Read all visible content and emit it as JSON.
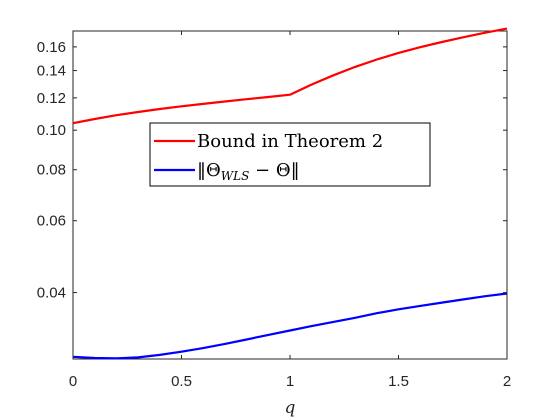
{
  "chart_data": {
    "type": "line",
    "title": "",
    "xlabel": "q",
    "ylabel": "",
    "xlim": [
      0,
      2
    ],
    "ylim": [
      0.0275,
      0.175
    ],
    "y_scale": "log",
    "grid": false,
    "legend_position": "center",
    "x_ticks": [
      "0",
      "0.5",
      "1",
      "1.5",
      "2"
    ],
    "y_ticks": [
      "0.04",
      "0.06",
      "0.08",
      "0.10",
      "0.12",
      "0.14",
      "0.16"
    ],
    "x": [
      0,
      0.1,
      0.2,
      0.3,
      0.4,
      0.5,
      0.6,
      0.7,
      0.8,
      0.9,
      1.0,
      1.1,
      1.2,
      1.3,
      1.4,
      1.5,
      1.6,
      1.7,
      1.8,
      1.9,
      2.0
    ],
    "series": [
      {
        "name": "Bound in Theorem 2",
        "color": "#ff0000",
        "values": [
          0.104,
          0.1065,
          0.1088,
          0.1108,
          0.1127,
          0.1144,
          0.116,
          0.1176,
          0.1191,
          0.1206,
          0.1222,
          0.1294,
          0.1363,
          0.1429,
          0.149,
          0.1547,
          0.1597,
          0.1645,
          0.169,
          0.1733,
          0.1774
        ]
      },
      {
        "name": "‖Θ_WLS − Θ‖",
        "color": "#0000ff",
        "values": [
          0.02785,
          0.02765,
          0.0276,
          0.02775,
          0.02815,
          0.02865,
          0.02925,
          0.02995,
          0.0307,
          0.0315,
          0.0323,
          0.0331,
          0.0339,
          0.0347,
          0.0356,
          0.0364,
          0.0371,
          0.0378,
          0.0385,
          0.0392,
          0.0398
        ]
      }
    ]
  },
  "legend": {
    "item1": {
      "label": "Bound in Theorem 2"
    },
    "item2": {
      "pre": "‖Θ",
      "sub": "WLS",
      "post": " − Θ‖"
    }
  }
}
